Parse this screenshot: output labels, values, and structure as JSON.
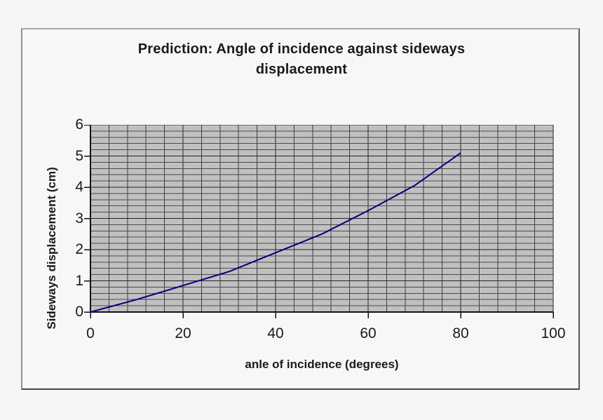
{
  "page": {
    "background": "#f5f6f5"
  },
  "chart": {
    "title_line1": "Prediction: Angle of incidence against sideways",
    "title_line2": "displacement",
    "x_axis_title": "anle of incidence (degrees)",
    "y_axis_title": "Sideways displacement (cm)"
  },
  "chart_data": {
    "type": "line",
    "title": "Prediction: Angle of incidence against sideways displacement",
    "xlabel": "anle of incidence (degrees)",
    "ylabel": "Sideways displacement (cm)",
    "x": [
      0,
      10,
      20,
      30,
      40,
      50,
      60,
      70,
      80
    ],
    "y": [
      0,
      0.4,
      0.85,
      1.3,
      1.9,
      2.5,
      3.25,
      4.05,
      5.1
    ],
    "xlim": [
      0,
      100
    ],
    "ylim": [
      0,
      6
    ],
    "x_major_ticks": [
      0,
      20,
      40,
      60,
      80,
      100
    ],
    "y_major_ticks": [
      0,
      1,
      2,
      3,
      4,
      5,
      6
    ],
    "x_minor_step": 4,
    "y_minor_step": 0.2,
    "grid": "major-and-minor",
    "legend": "none",
    "series_color": "#000080",
    "plot_area_fill": "#c0c0c0",
    "grid_minor_color": "#4a4a4a",
    "grid_major_color": "#222222",
    "axis_color": "#111111"
  }
}
